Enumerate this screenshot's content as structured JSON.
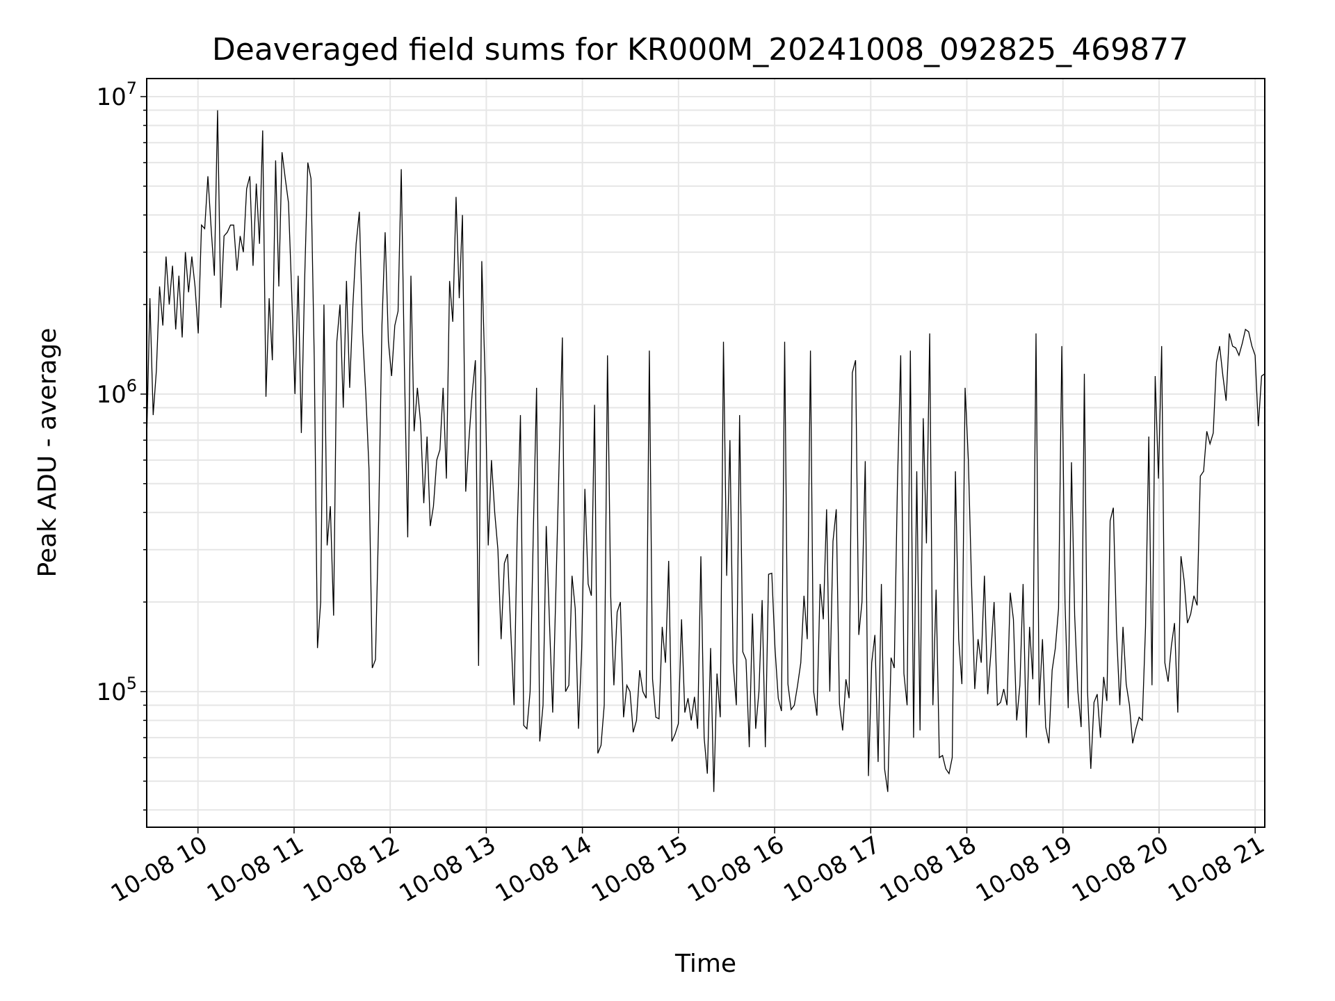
{
  "chart_data": {
    "type": "line",
    "title": "Deaveraged field sums for KR000M_20241008_092825_469877",
    "xlabel": "Time",
    "ylabel": "Peak ADU - average",
    "yscale": "log",
    "xlim": [
      "2024-10-08 09:28",
      "2024-10-08 21:06"
    ],
    "ylim": [
      35000,
      11500000
    ],
    "x_ticks": [
      "10-08 10",
      "10-08 11",
      "10-08 12",
      "10-08 13",
      "10-08 14",
      "10-08 15",
      "10-08 16",
      "10-08 17",
      "10-08 18",
      "10-08 19",
      "10-08 20",
      "10-08 21"
    ],
    "y_ticks": [
      {
        "base": "10",
        "exp": "5",
        "value": 100000
      },
      {
        "base": "10",
        "exp": "6",
        "value": 1000000
      },
      {
        "base": "10",
        "exp": "7",
        "value": 10000000
      }
    ],
    "grid": true,
    "line_color": "#000000",
    "grid_color": "#e6e6e6",
    "series": [
      {
        "x_start": "2024-10-08 09:28",
        "x_end": "2024-10-08 21:06",
        "values": [
          700000,
          2100000,
          850000,
          1200000,
          2300000,
          1700000,
          2900000,
          2000000,
          2700000,
          1650000,
          2500000,
          1550000,
          3000000,
          2200000,
          2900000,
          2300000,
          1600000,
          3700000,
          3600000,
          5400000,
          3600000,
          2500000,
          9000000,
          1950000,
          3400000,
          3500000,
          3700000,
          3700000,
          2600000,
          3400000,
          3000000,
          4900000,
          5400000,
          2700000,
          5100000,
          3200000,
          7700000,
          980000,
          2100000,
          1300000,
          6100000,
          2300000,
          6500000,
          5300000,
          4400000,
          2200000,
          1000000,
          2500000,
          740000,
          2400000,
          6000000,
          5300000,
          1300000,
          140000,
          200000,
          2000000,
          310000,
          420000,
          180000,
          1500000,
          2000000,
          900000,
          2400000,
          1050000,
          2000000,
          3200000,
          4100000,
          1600000,
          1000000,
          560000,
          120000,
          128000,
          380000,
          1700000,
          3500000,
          1500000,
          1150000,
          1700000,
          1900000,
          5700000,
          1200000,
          330000,
          2500000,
          750000,
          1050000,
          800000,
          430000,
          720000,
          360000,
          420000,
          600000,
          650000,
          1050000,
          520000,
          2400000,
          1750000,
          4600000,
          2100000,
          4000000,
          470000,
          700000,
          1000000,
          1300000,
          122000,
          2800000,
          1150000,
          310000,
          600000,
          400000,
          300000,
          150000,
          270000,
          290000,
          160000,
          90000,
          350000,
          850000,
          77000,
          75000,
          100000,
          350000,
          1050000,
          68000,
          90000,
          360000,
          170000,
          85000,
          220000,
          600000,
          1550000,
          100000,
          105000,
          245000,
          190000,
          75000,
          140000,
          480000,
          230000,
          210000,
          920000,
          62000,
          66000,
          90000,
          1350000,
          210000,
          105000,
          185000,
          200000,
          82000,
          105000,
          100000,
          73000,
          80000,
          118000,
          100000,
          95000,
          1400000,
          110000,
          82000,
          81000,
          165000,
          125000,
          275000,
          68000,
          72000,
          78000,
          175000,
          85000,
          95000,
          80000,
          96000,
          75000,
          285000,
          70000,
          53000,
          140000,
          46000,
          115000,
          82000,
          1500000,
          245000,
          700000,
          125000,
          90000,
          850000,
          136000,
          128000,
          65000,
          183000,
          75000,
          100000,
          203000,
          65000,
          248000,
          250000,
          140000,
          95000,
          86000,
          1500000,
          106000,
          87000,
          90000,
          105000,
          125000,
          210000,
          150000,
          1400000,
          100000,
          83000,
          230000,
          175000,
          410000,
          100000,
          320000,
          410000,
          91000,
          74000,
          110000,
          95000,
          1180000,
          1300000,
          155000,
          200000,
          595000,
          52000,
          125000,
          155000,
          58000,
          230000,
          55000,
          46000,
          130000,
          120000,
          500000,
          1350000,
          115000,
          90000,
          1400000,
          70000,
          550000,
          74000,
          830000,
          315000,
          1600000,
          90000,
          220000,
          60000,
          61000,
          55000,
          53000,
          60000,
          550000,
          150000,
          106000,
          1050000,
          600000,
          230000,
          102000,
          150000,
          125000,
          245000,
          98000,
          135000,
          200000,
          90000,
          92000,
          102000,
          90000,
          215000,
          175000,
          80000,
          105000,
          230000,
          70000,
          165000,
          110000,
          1600000,
          90000,
          150000,
          76000,
          67000,
          118000,
          140000,
          190000,
          1450000,
          200000,
          88000,
          590000,
          180000,
          100000,
          76000,
          1170000,
          100000,
          55000,
          92000,
          98000,
          70000,
          112000,
          93000,
          375000,
          415000,
          160000,
          90000,
          165000,
          106000,
          90000,
          67000,
          75000,
          82000,
          80000,
          165000,
          720000,
          105000,
          1150000,
          520000,
          1450000,
          125000,
          108000,
          142000,
          170000,
          85000,
          285000,
          235000,
          170000,
          182000,
          210000,
          195000,
          530000,
          550000,
          750000,
          680000,
          740000,
          1280000,
          1450000,
          1150000,
          950000,
          1600000,
          1450000,
          1430000,
          1350000,
          1480000,
          1650000,
          1620000,
          1450000,
          1350000,
          780000,
          1150000,
          1170000
        ]
      }
    ]
  }
}
